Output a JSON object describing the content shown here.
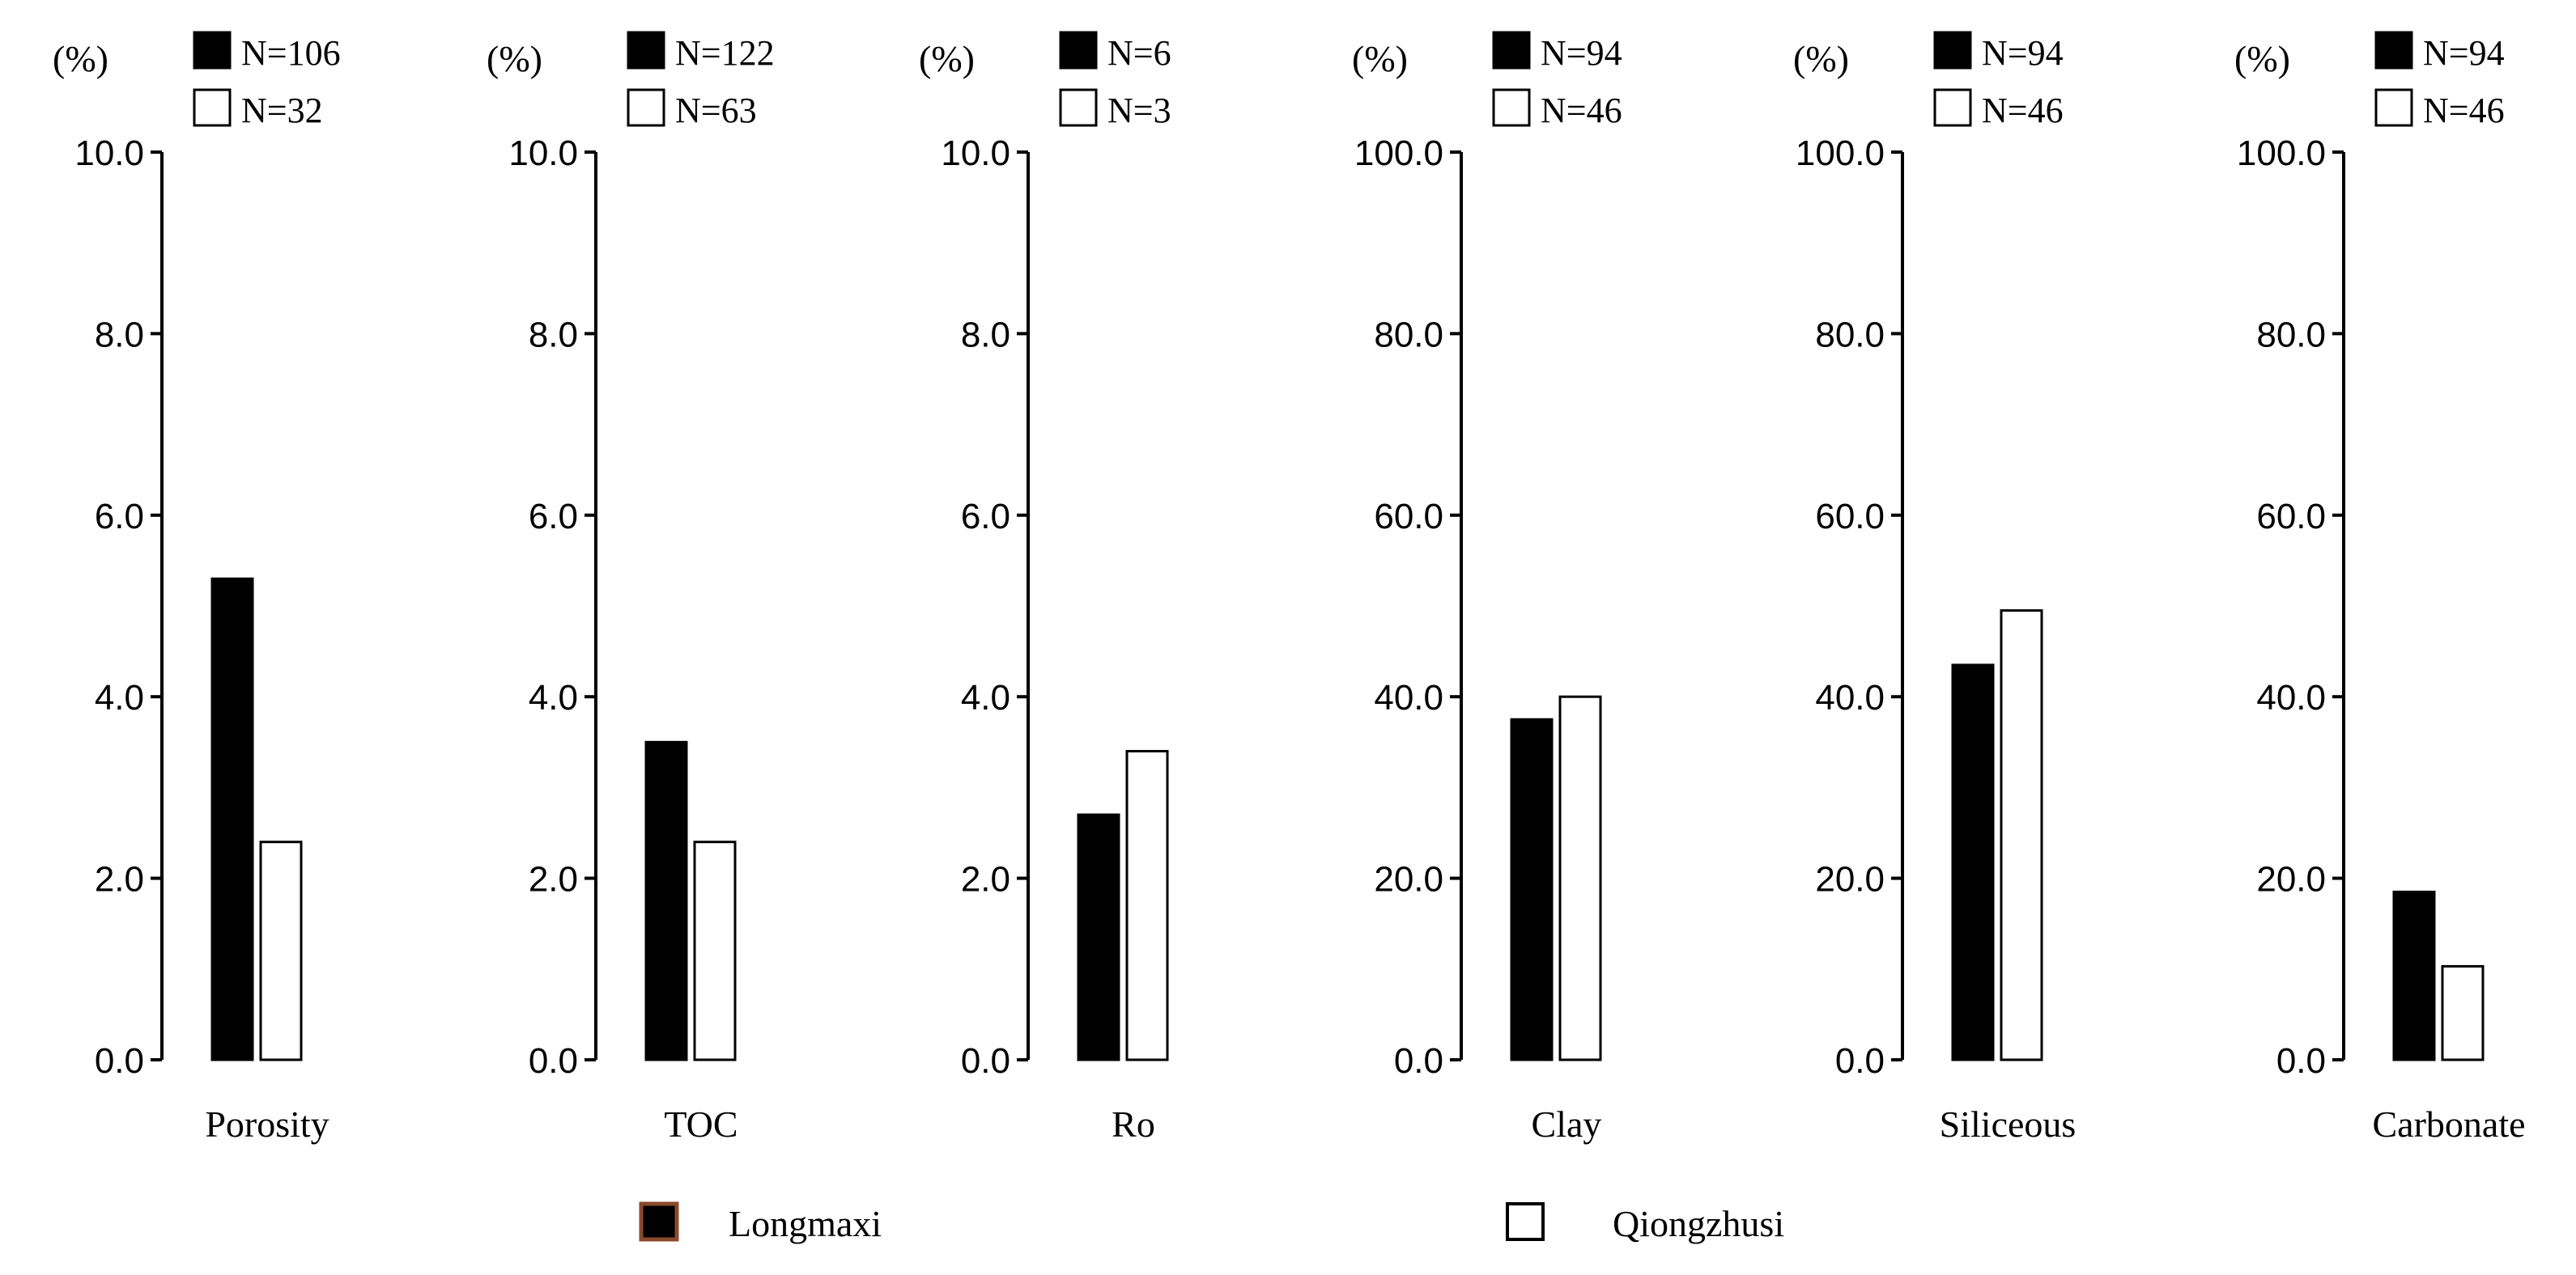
{
  "colors": {
    "series_1": "#000000",
    "series_2": "#ffffff",
    "legend_swatch_border": "#8b4a2b",
    "axis": "#000000"
  },
  "legend": {
    "longmaxi": "Longmaxi",
    "qiongzhusi": "Qiongzhusi"
  },
  "chart_data": [
    {
      "type": "bar",
      "panel": "porosity",
      "categories": [
        "Porosity"
      ],
      "unit_label": "(%)",
      "ylim": [
        0,
        10
      ],
      "yticks": [
        "0.0",
        "2.0",
        "4.0",
        "6.0",
        "8.0",
        "10.0"
      ],
      "series": [
        {
          "name": "Longmaxi",
          "n_label": "N=106",
          "values": [
            5.3
          ]
        },
        {
          "name": "Qiongzhusi",
          "n_label": "N=32",
          "values": [
            2.4
          ]
        }
      ]
    },
    {
      "type": "bar",
      "panel": "toc",
      "categories": [
        "TOC"
      ],
      "unit_label": "(%)",
      "ylim": [
        0,
        10
      ],
      "yticks": [
        "0.0",
        "2.0",
        "4.0",
        "6.0",
        "8.0",
        "10.0"
      ],
      "series": [
        {
          "name": "Longmaxi",
          "n_label": "N=122",
          "values": [
            3.5
          ]
        },
        {
          "name": "Qiongzhusi",
          "n_label": "N=63",
          "values": [
            2.4
          ]
        }
      ]
    },
    {
      "type": "bar",
      "panel": "ro",
      "categories": [
        "Ro"
      ],
      "unit_label": "(%)",
      "ylim": [
        0,
        10
      ],
      "yticks": [
        "0.0",
        "2.0",
        "4.0",
        "6.0",
        "8.0",
        "10.0"
      ],
      "series": [
        {
          "name": "Longmaxi",
          "n_label": "N=6",
          "values": [
            2.7
          ]
        },
        {
          "name": "Qiongzhusi",
          "n_label": "N=3",
          "values": [
            3.4
          ]
        }
      ]
    },
    {
      "type": "bar",
      "panel": "clay",
      "categories": [
        "Clay"
      ],
      "unit_label": "(%)",
      "ylim": [
        0,
        100
      ],
      "yticks": [
        "0.0",
        "20.0",
        "40.0",
        "60.0",
        "80.0",
        "100.0"
      ],
      "series": [
        {
          "name": "Longmaxi",
          "n_label": "N=94",
          "values": [
            37.5
          ]
        },
        {
          "name": "Qiongzhusi",
          "n_label": "N=46",
          "values": [
            40.0
          ]
        }
      ]
    },
    {
      "type": "bar",
      "panel": "siliceous",
      "categories": [
        "Siliceous"
      ],
      "unit_label": "(%)",
      "ylim": [
        0,
        100
      ],
      "yticks": [
        "0.0",
        "20.0",
        "40.0",
        "60.0",
        "80.0",
        "100.0"
      ],
      "series": [
        {
          "name": "Longmaxi",
          "n_label": "N=94",
          "values": [
            43.5
          ]
        },
        {
          "name": "Qiongzhusi",
          "n_label": "N=46",
          "values": [
            49.5
          ]
        }
      ]
    },
    {
      "type": "bar",
      "panel": "carbonate",
      "categories": [
        "Carbonate"
      ],
      "unit_label": "(%)",
      "ylim": [
        0,
        100
      ],
      "yticks": [
        "0.0",
        "20.0",
        "40.0",
        "60.0",
        "80.0",
        "100.0"
      ],
      "series": [
        {
          "name": "Longmaxi",
          "n_label": "N=94",
          "values": [
            18.5
          ]
        },
        {
          "name": "Qiongzhusi",
          "n_label": "N=46",
          "values": [
            10.3
          ]
        }
      ]
    }
  ]
}
